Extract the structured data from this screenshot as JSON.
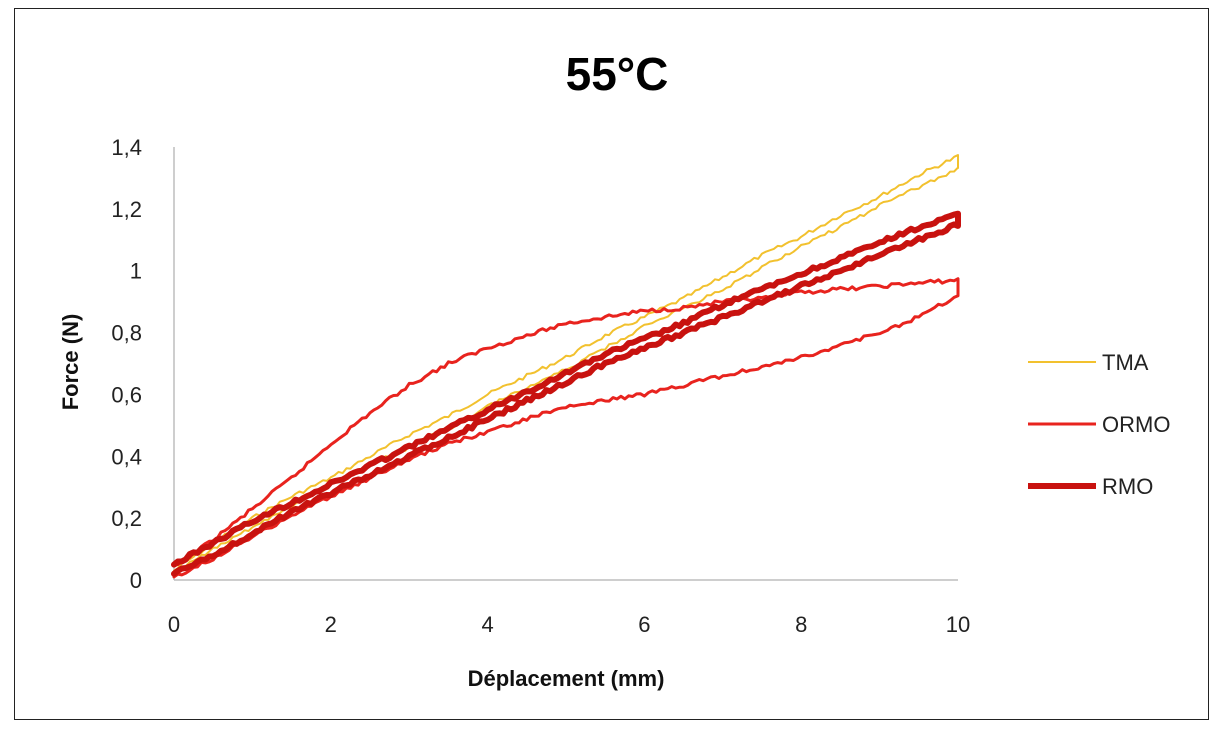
{
  "chart_data": {
    "type": "line",
    "title": "55°C",
    "xlabel": "Déplacement (mm)",
    "ylabel": "Force (N)",
    "xlim": [
      0,
      10
    ],
    "ylim": [
      0,
      1.4
    ],
    "x_ticks": [
      0,
      2,
      4,
      6,
      8,
      10
    ],
    "x_tick_labels": [
      "0",
      "2",
      "4",
      "6",
      "8",
      "10"
    ],
    "y_ticks": [
      0,
      0.2,
      0.4,
      0.6,
      0.8,
      1.0,
      1.2,
      1.4
    ],
    "y_tick_labels": [
      "0",
      "0,2",
      "0,4",
      "0,6",
      "0,8",
      "1",
      "1,2",
      "1,4"
    ],
    "grid": false,
    "legend_position": "right",
    "series": [
      {
        "name": "TMA",
        "color": "#F2C12E",
        "line_width": 2,
        "x": [
          0,
          0.5,
          1,
          1.5,
          2,
          2.5,
          3,
          3.5,
          4,
          4.5,
          5,
          5.5,
          6,
          6.5,
          7,
          7.5,
          8,
          8.5,
          9,
          9.5,
          10,
          10,
          9.5,
          9,
          8.5,
          8,
          7.5,
          7,
          6.5,
          6,
          5.5,
          5,
          4.5,
          4,
          3.5,
          3,
          2.5,
          2,
          1.5,
          1,
          0.5,
          0
        ],
        "y": [
          0.03,
          0.12,
          0.2,
          0.27,
          0.33,
          0.4,
          0.47,
          0.53,
          0.6,
          0.66,
          0.72,
          0.79,
          0.85,
          0.91,
          0.98,
          1.05,
          1.11,
          1.18,
          1.24,
          1.31,
          1.37,
          1.33,
          1.27,
          1.21,
          1.14,
          1.08,
          1.01,
          0.94,
          0.88,
          0.82,
          0.75,
          0.68,
          0.62,
          0.56,
          0.49,
          0.43,
          0.37,
          0.31,
          0.24,
          0.17,
          0.1,
          0.02
        ]
      },
      {
        "name": "ORMO",
        "color": "#E8231E",
        "line_width": 3,
        "x": [
          0,
          0.5,
          1,
          1.5,
          2,
          2.5,
          3,
          3.5,
          4,
          4.5,
          5,
          5.5,
          6,
          6.5,
          7,
          7.5,
          8,
          8.5,
          9,
          9.5,
          10,
          10,
          9.5,
          9,
          8.5,
          8,
          7.5,
          7,
          6.5,
          6,
          5.5,
          5,
          4.5,
          4,
          3.5,
          3,
          2.5,
          2,
          1.5,
          1,
          0.5,
          0
        ],
        "y": [
          0.04,
          0.13,
          0.23,
          0.33,
          0.44,
          0.54,
          0.63,
          0.7,
          0.75,
          0.79,
          0.83,
          0.85,
          0.87,
          0.88,
          0.9,
          0.91,
          0.93,
          0.94,
          0.95,
          0.96,
          0.97,
          0.92,
          0.85,
          0.8,
          0.76,
          0.72,
          0.69,
          0.66,
          0.63,
          0.6,
          0.58,
          0.56,
          0.52,
          0.48,
          0.44,
          0.39,
          0.33,
          0.27,
          0.21,
          0.14,
          0.07,
          0.01
        ]
      },
      {
        "name": "RMO",
        "color": "#C8120F",
        "line_width": 6,
        "x": [
          0,
          0.5,
          1,
          1.5,
          2,
          2.5,
          3,
          3.5,
          4,
          4.5,
          5,
          5.5,
          6,
          6.5,
          7,
          7.5,
          8,
          8.5,
          9,
          9.5,
          10,
          10,
          9.5,
          9,
          8.5,
          8,
          7.5,
          7,
          6.5,
          6,
          5.5,
          5,
          4.5,
          4,
          3.5,
          3,
          2.5,
          2,
          1.5,
          1,
          0.5,
          0
        ],
        "y": [
          0.05,
          0.12,
          0.19,
          0.25,
          0.31,
          0.37,
          0.43,
          0.49,
          0.55,
          0.61,
          0.67,
          0.73,
          0.78,
          0.83,
          0.89,
          0.94,
          0.99,
          1.04,
          1.09,
          1.14,
          1.18,
          1.15,
          1.1,
          1.05,
          1.0,
          0.95,
          0.9,
          0.85,
          0.8,
          0.75,
          0.7,
          0.64,
          0.58,
          0.52,
          0.46,
          0.4,
          0.34,
          0.28,
          0.22,
          0.15,
          0.08,
          0.02
        ]
      }
    ]
  }
}
